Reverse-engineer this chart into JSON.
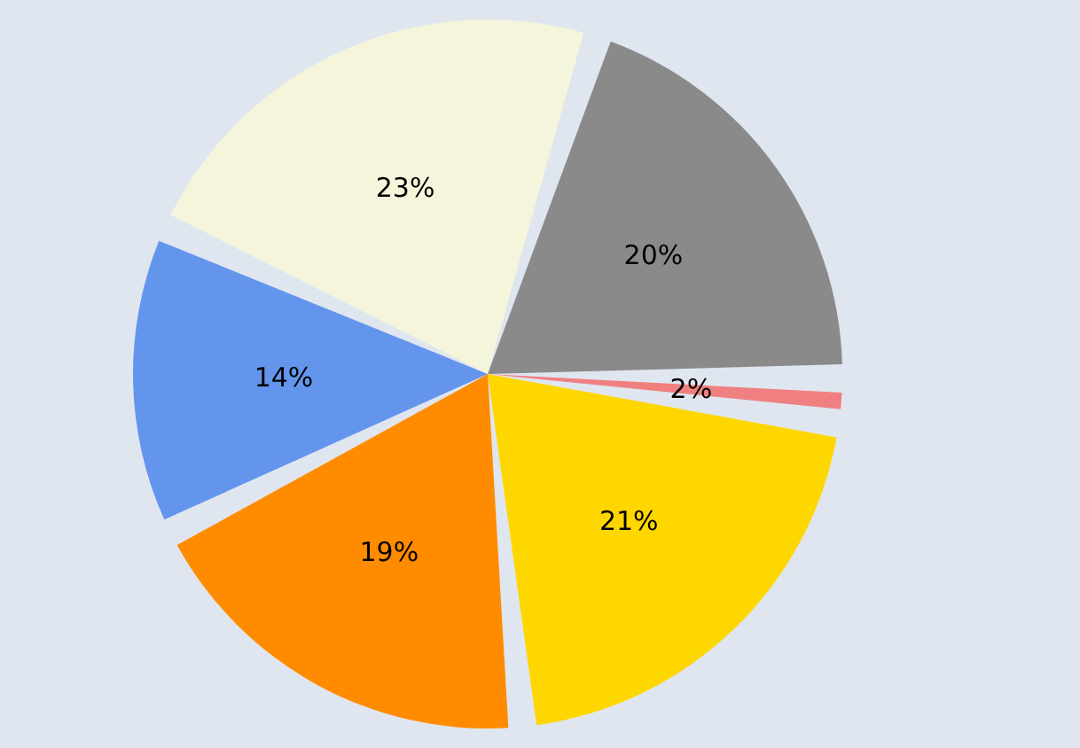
{
  "chart_data": {
    "type": "pie",
    "categories": [
      null,
      null,
      null,
      null,
      null,
      null
    ],
    "values": [
      20,
      2,
      21,
      19,
      14,
      23
    ],
    "value_labels": [
      "20%",
      "2%",
      "21%",
      "19%",
      "14%",
      "23%"
    ],
    "colors": [
      "#8a8a8a",
      "#f08080",
      "#ffd700",
      "#ff8c00",
      "#6495ed",
      "#f5f5dc"
    ]
  }
}
